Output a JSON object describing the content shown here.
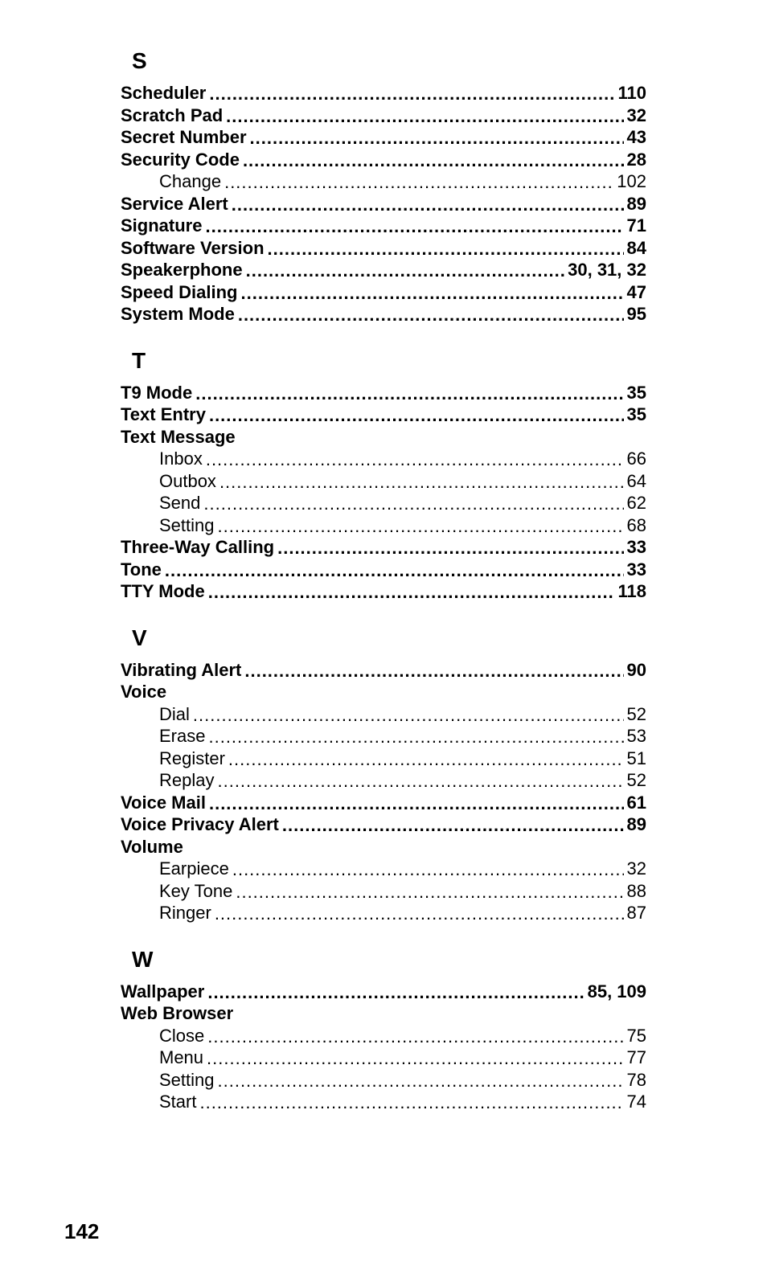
{
  "page_number": "142",
  "leader_text": ".........................................................................................................................",
  "sections": [
    {
      "letter": "S",
      "entries": [
        {
          "label": "Scheduler",
          "pages": "110",
          "bold": true,
          "sub": false
        },
        {
          "label": "Scratch Pad",
          "pages": "32",
          "bold": true,
          "sub": false
        },
        {
          "label": "Secret Number",
          "pages": "43",
          "bold": true,
          "sub": false
        },
        {
          "label": "Security Code",
          "pages": "28",
          "bold": true,
          "sub": false
        },
        {
          "label": "Change",
          "pages": "102",
          "bold": false,
          "sub": true
        },
        {
          "label": "Service Alert",
          "pages": "89",
          "bold": true,
          "sub": false
        },
        {
          "label": "Signature",
          "pages": "71",
          "bold": true,
          "sub": false
        },
        {
          "label": "Software Version",
          "pages": "84",
          "bold": true,
          "sub": false
        },
        {
          "label": "Speakerphone",
          "pages": "30, 31, 32",
          "bold": true,
          "sub": false
        },
        {
          "label": "Speed Dialing",
          "pages": "47",
          "bold": true,
          "sub": false
        },
        {
          "label": "System Mode",
          "pages": "95",
          "bold": true,
          "sub": false
        }
      ]
    },
    {
      "letter": "T",
      "entries": [
        {
          "label": "T9 Mode",
          "pages": "35",
          "bold": true,
          "sub": false
        },
        {
          "label": "Text Entry",
          "pages": "35",
          "bold": true,
          "sub": false
        },
        {
          "label": "Text Message",
          "pages": "",
          "bold": true,
          "sub": false
        },
        {
          "label": "Inbox",
          "pages": "66",
          "bold": false,
          "sub": true
        },
        {
          "label": "Outbox",
          "pages": "64",
          "bold": false,
          "sub": true
        },
        {
          "label": "Send",
          "pages": "62",
          "bold": false,
          "sub": true
        },
        {
          "label": "Setting",
          "pages": "68",
          "bold": false,
          "sub": true
        },
        {
          "label": "Three-Way Calling",
          "pages": "33",
          "bold": true,
          "sub": false
        },
        {
          "label": "Tone",
          "pages": "33",
          "bold": true,
          "sub": false
        },
        {
          "label": "TTY Mode",
          "pages": "118",
          "bold": true,
          "sub": false
        }
      ]
    },
    {
      "letter": "V",
      "entries": [
        {
          "label": "Vibrating Alert",
          "pages": "90",
          "bold": true,
          "sub": false
        },
        {
          "label": "Voice",
          "pages": "",
          "bold": true,
          "sub": false
        },
        {
          "label": "Dial",
          "pages": "52",
          "bold": false,
          "sub": true
        },
        {
          "label": "Erase",
          "pages": "53",
          "bold": false,
          "sub": true
        },
        {
          "label": "Register",
          "pages": "51",
          "bold": false,
          "sub": true
        },
        {
          "label": "Replay",
          "pages": "52",
          "bold": false,
          "sub": true
        },
        {
          "label": "Voice Mail",
          "pages": "61",
          "bold": true,
          "sub": false
        },
        {
          "label": "Voice Privacy Alert",
          "pages": "89",
          "bold": true,
          "sub": false
        },
        {
          "label": "Volume",
          "pages": "",
          "bold": true,
          "sub": false
        },
        {
          "label": "Earpiece",
          "pages": "32",
          "bold": false,
          "sub": true
        },
        {
          "label": "Key Tone",
          "pages": "88",
          "bold": false,
          "sub": true
        },
        {
          "label": "Ringer",
          "pages": "87",
          "bold": false,
          "sub": true
        }
      ]
    },
    {
      "letter": "W",
      "entries": [
        {
          "label": "Wallpaper",
          "pages": "85, 109",
          "bold": true,
          "sub": false
        },
        {
          "label": "Web Browser",
          "pages": "",
          "bold": true,
          "sub": false
        },
        {
          "label": "Close",
          "pages": "75",
          "bold": false,
          "sub": true
        },
        {
          "label": "Menu",
          "pages": "77",
          "bold": false,
          "sub": true
        },
        {
          "label": "Setting",
          "pages": "78",
          "bold": false,
          "sub": true
        },
        {
          "label": "Start",
          "pages": "74",
          "bold": false,
          "sub": true
        }
      ]
    }
  ]
}
